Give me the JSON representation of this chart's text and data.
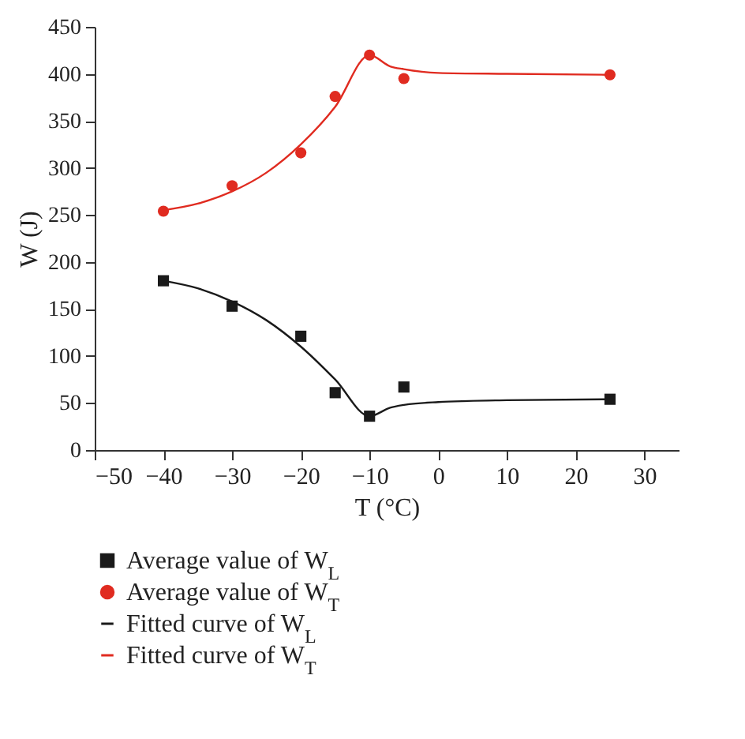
{
  "chart_data": {
    "type": "scatter",
    "xlabel": "T (°C)",
    "ylabel": "W (J)",
    "xlim": [
      -50,
      35
    ],
    "xticks": [
      -50,
      -40,
      -30,
      -20,
      -10,
      0,
      10,
      20,
      30
    ],
    "ylim": [
      0,
      450
    ],
    "yticks": [
      0,
      50,
      100,
      150,
      200,
      250,
      300,
      350,
      400,
      450
    ],
    "grid": false,
    "legend": "bottom",
    "series": [
      {
        "name": "Average value of W$_{L}$",
        "marker": "square",
        "color": "#1a1a1a",
        "x": [
          -40,
          -30,
          -20,
          -15,
          -10,
          -5,
          25
        ],
        "values": [
          180,
          153,
          121,
          61,
          36,
          67,
          54
        ]
      },
      {
        "name": "Average value of W$_{T}$",
        "marker": "circle",
        "color": "#e02b20",
        "x": [
          -40,
          -30,
          -20,
          -15,
          -10,
          -5,
          25
        ],
        "values": [
          254,
          281,
          316,
          376,
          420,
          395,
          399
        ]
      },
      {
        "name": "Fitted curve of W$_{L}$",
        "type": "line",
        "color": "#1a1a1a",
        "x": [
          -40,
          -35,
          -30,
          -25,
          -20,
          -15,
          -10,
          -7,
          -5,
          0,
          10,
          25
        ],
        "values": [
          180,
          172,
          158,
          138,
          110,
          75,
          36,
          45,
          48,
          51,
          53,
          54
        ]
      },
      {
        "name": "Fitted curve of W$_{T}$",
        "type": "line",
        "color": "#e02b20",
        "x": [
          -40,
          -35,
          -30,
          -25,
          -20,
          -15,
          -10,
          -7,
          -5,
          0,
          10,
          25
        ],
        "values": [
          255,
          262,
          275,
          295,
          325,
          365,
          420,
          408,
          405,
          401,
          400,
          399
        ]
      }
    ]
  }
}
